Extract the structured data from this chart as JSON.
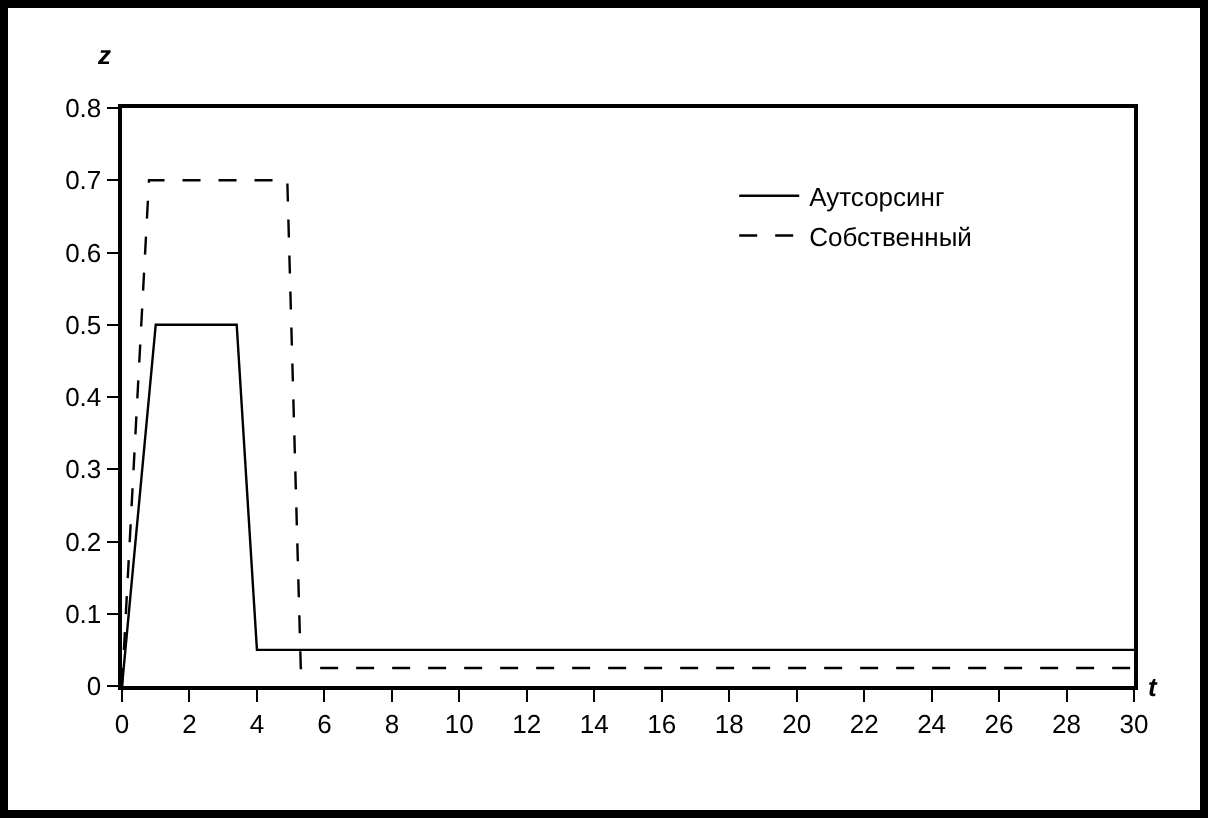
{
  "chart_data": {
    "type": "line",
    "xlabel": "t",
    "ylabel": "z",
    "xlim": [
      0,
      30
    ],
    "xticks": [
      0,
      2,
      4,
      6,
      8,
      10,
      12,
      14,
      16,
      18,
      20,
      22,
      24,
      26,
      28,
      30
    ],
    "ylim": [
      0,
      0.8
    ],
    "yticks": [
      0,
      0.1,
      0.2,
      0.3,
      0.4,
      0.5,
      0.6,
      0.7,
      0.8
    ],
    "grid": false,
    "legend": "top right",
    "marker": "none",
    "series": [
      {
        "name": "Аутсорсинг",
        "color": "#000000",
        "line_style": "solid",
        "x": [
          0,
          1,
          3.4,
          4,
          30
        ],
        "values": [
          0,
          0.5,
          0.5,
          0.05,
          0.05
        ]
      },
      {
        "name": "Собственный",
        "color": "#000000",
        "line_style": "dashed",
        "x": [
          0,
          0.8,
          4.9,
          5.3,
          30
        ],
        "values": [
          0,
          0.7,
          0.7,
          0.025,
          0.025
        ]
      }
    ]
  }
}
